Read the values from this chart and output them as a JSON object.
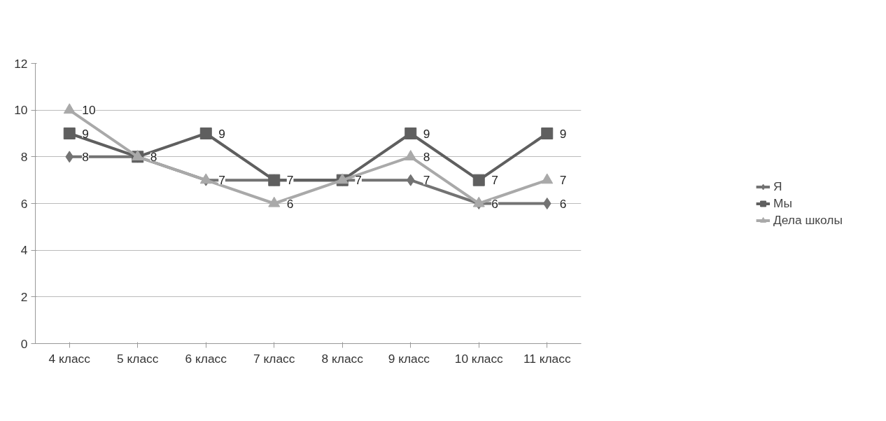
{
  "chart_data": {
    "type": "line",
    "categories": [
      "4 класс",
      "5 класс",
      "6 класс",
      "7 класс",
      "8 класс",
      "9  класс",
      "10 класс",
      "11 класс"
    ],
    "series": [
      {
        "name": "Я",
        "color": "#737373",
        "marker": "diamond",
        "values": [
          8,
          8,
          7,
          7,
          7,
          7,
          6,
          6
        ],
        "value_labels": [
          "8",
          null,
          null,
          null,
          null,
          "7",
          null,
          "6"
        ]
      },
      {
        "name": "Мы",
        "color": "#5f5f5f",
        "marker": "square",
        "values": [
          9,
          8,
          9,
          7,
          7,
          9,
          7,
          9
        ],
        "value_labels": [
          "9",
          "8",
          "9",
          "7",
          "7",
          "9",
          "7",
          "9"
        ]
      },
      {
        "name": "Дела школы",
        "color": "#a9a9a9",
        "marker": "triangle",
        "values": [
          10,
          8,
          7,
          6,
          7,
          8,
          6,
          7
        ],
        "value_labels": [
          "10",
          null,
          "7",
          "6",
          null,
          "8",
          "6",
          "7"
        ]
      }
    ],
    "ylim": [
      0,
      12
    ],
    "yticks": [
      0,
      2,
      4,
      6,
      8,
      10,
      12
    ],
    "grid": "y",
    "legend": "right",
    "line_style": "solid"
  }
}
